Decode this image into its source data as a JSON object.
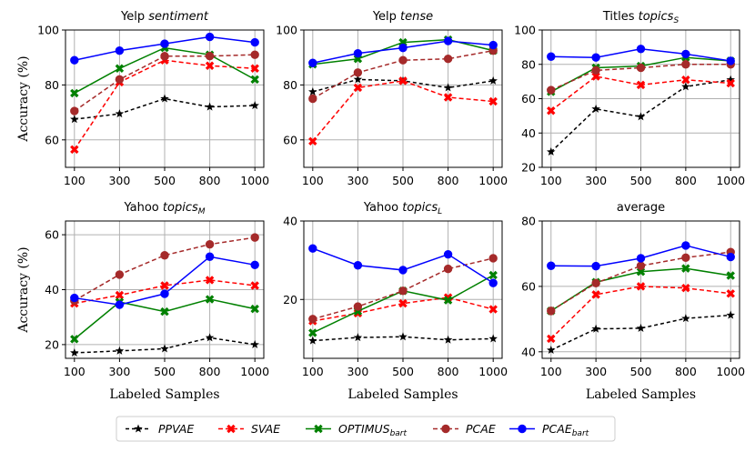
{
  "chart_data": [
    {
      "type": "line",
      "title": "Yelp",
      "title_italic": "sentiment",
      "x": [
        "100",
        "300",
        "500",
        "800",
        "1000"
      ],
      "ylabel": "Accuracy (%)",
      "xlabel": "",
      "ylim": [
        50,
        100
      ],
      "yticks": [
        60,
        80,
        100
      ],
      "grid": true,
      "series": [
        {
          "name": "PPVAE",
          "values": [
            67.5,
            69.5,
            75,
            72,
            72.5
          ]
        },
        {
          "name": "SVAE",
          "values": [
            56.5,
            81,
            89,
            87,
            86
          ]
        },
        {
          "name": "OPTIMUS_bart",
          "values": [
            77,
            86,
            93.5,
            91,
            82
          ]
        },
        {
          "name": "PCAE",
          "values": [
            70.5,
            82,
            90.5,
            90.5,
            91
          ]
        },
        {
          "name": "PCAE_bart",
          "values": [
            89,
            92.5,
            95,
            97.5,
            95.5
          ]
        }
      ]
    },
    {
      "type": "line",
      "title": "Yelp",
      "title_italic": "tense",
      "x": [
        "100",
        "300",
        "500",
        "800",
        "1000"
      ],
      "ylabel": "",
      "xlabel": "",
      "ylim": [
        50,
        100
      ],
      "yticks": [
        60,
        80,
        100
      ],
      "grid": true,
      "series": [
        {
          "name": "PPVAE",
          "values": [
            77.5,
            82,
            81.5,
            79,
            81.5
          ]
        },
        {
          "name": "SVAE",
          "values": [
            59.5,
            79,
            81.5,
            75.5,
            74
          ]
        },
        {
          "name": "OPTIMUS_bart",
          "values": [
            87.5,
            89.5,
            95.5,
            96.5,
            92.5
          ]
        },
        {
          "name": "PCAE",
          "values": [
            75,
            84.5,
            89,
            89.5,
            92.5
          ]
        },
        {
          "name": "PCAE_bart",
          "values": [
            88,
            91.5,
            93.5,
            96,
            94.5
          ]
        }
      ]
    },
    {
      "type": "line",
      "title": "Titles",
      "title_italic": "topics",
      "title_sub": "S",
      "x": [
        "100",
        "300",
        "500",
        "800",
        "1000"
      ],
      "ylabel": "",
      "xlabel": "",
      "ylim": [
        20,
        100
      ],
      "yticks": [
        20,
        40,
        60,
        80,
        100
      ],
      "grid": true,
      "series": [
        {
          "name": "PPVAE",
          "values": [
            29,
            54,
            49.5,
            67,
            71
          ]
        },
        {
          "name": "SVAE",
          "values": [
            53,
            73,
            68,
            71,
            69
          ]
        },
        {
          "name": "OPTIMUS_bart",
          "values": [
            64,
            78,
            79,
            84,
            82
          ]
        },
        {
          "name": "PCAE",
          "values": [
            65,
            76.5,
            78,
            80,
            80
          ]
        },
        {
          "name": "PCAE_bart",
          "values": [
            84.5,
            84,
            89,
            86,
            82
          ]
        }
      ]
    },
    {
      "type": "line",
      "title": "Yahoo",
      "title_italic": "topics",
      "title_sub": "M",
      "x": [
        "100",
        "300",
        "500",
        "800",
        "1000"
      ],
      "ylabel": "Accuracy (%)",
      "xlabel": "Labeled Samples",
      "ylim": [
        15,
        65
      ],
      "yticks": [
        20,
        40,
        60
      ],
      "grid": true,
      "series": [
        {
          "name": "PPVAE",
          "values": [
            17,
            17.7,
            18.5,
            22.5,
            20
          ]
        },
        {
          "name": "SVAE",
          "values": [
            35,
            38,
            41.5,
            43.5,
            41.5
          ]
        },
        {
          "name": "OPTIMUS_bart",
          "values": [
            22,
            35.5,
            32,
            36.5,
            33
          ]
        },
        {
          "name": "PCAE",
          "values": [
            36,
            45.5,
            52.5,
            56.5,
            59
          ]
        },
        {
          "name": "PCAE_bart",
          "values": [
            37,
            34.5,
            38.5,
            52,
            49
          ]
        }
      ]
    },
    {
      "type": "line",
      "title": "Yahoo",
      "title_italic": "topics",
      "title_sub": "L",
      "x": [
        "100",
        "300",
        "500",
        "800",
        "1000"
      ],
      "ylabel": "",
      "xlabel": "Labeled Samples",
      "ylim": [
        5,
        40
      ],
      "yticks": [
        20,
        40
      ],
      "grid": true,
      "series": [
        {
          "name": "PPVAE",
          "values": [
            9.5,
            10.3,
            10.5,
            9.7,
            10
          ]
        },
        {
          "name": "SVAE",
          "values": [
            14.5,
            16.5,
            19,
            20.5,
            17.5
          ]
        },
        {
          "name": "OPTIMUS_bart",
          "values": [
            11.5,
            17,
            22.2,
            19.8,
            26.2
          ]
        },
        {
          "name": "PCAE",
          "values": [
            15,
            18.2,
            22.2,
            27.8,
            30.5
          ]
        },
        {
          "name": "PCAE_bart",
          "values": [
            33,
            28.7,
            27.5,
            31.5,
            24.2
          ]
        }
      ]
    },
    {
      "type": "line",
      "title": "average",
      "title_italic": "",
      "x": [
        "100",
        "300",
        "500",
        "800",
        "1000"
      ],
      "ylabel": "",
      "xlabel": "Labeled Samples",
      "ylim": [
        38,
        80
      ],
      "yticks": [
        40,
        60,
        80
      ],
      "grid": true,
      "series": [
        {
          "name": "PPVAE",
          "values": [
            40.5,
            47,
            47.2,
            50.2,
            51.2
          ]
        },
        {
          "name": "SVAE",
          "values": [
            44,
            57.5,
            60,
            59.5,
            57.8
          ]
        },
        {
          "name": "OPTIMUS_bart",
          "values": [
            52.5,
            61.3,
            64.5,
            65.5,
            63.3
          ]
        },
        {
          "name": "PCAE",
          "values": [
            52.5,
            61,
            66.3,
            68.8,
            70.5
          ]
        },
        {
          "name": "PCAE_bart",
          "values": [
            66.3,
            66.2,
            68.6,
            72.5,
            69
          ]
        }
      ]
    }
  ],
  "legend": {
    "placement": "bottom-center",
    "entries": [
      {
        "name": "PPVAE",
        "base": "PPVAE",
        "sub": "",
        "color": "#000000",
        "marker": "star",
        "dash": "4,3"
      },
      {
        "name": "SVAE",
        "base": "SVAE",
        "sub": "",
        "color": "#ff0000",
        "marker": "x",
        "dash": "5,3"
      },
      {
        "name": "OPTIMUS_bart",
        "base": "OPTIMUS",
        "sub": "bart",
        "color": "#008000",
        "marker": "x",
        "dash": ""
      },
      {
        "name": "PCAE",
        "base": "PCAE",
        "sub": "",
        "color": "#a52a2a",
        "marker": "circle",
        "dash": "5,3"
      },
      {
        "name": "PCAE_bart",
        "base": "PCAE",
        "sub": "bart",
        "color": "#0000ff",
        "marker": "circle",
        "dash": ""
      }
    ]
  }
}
